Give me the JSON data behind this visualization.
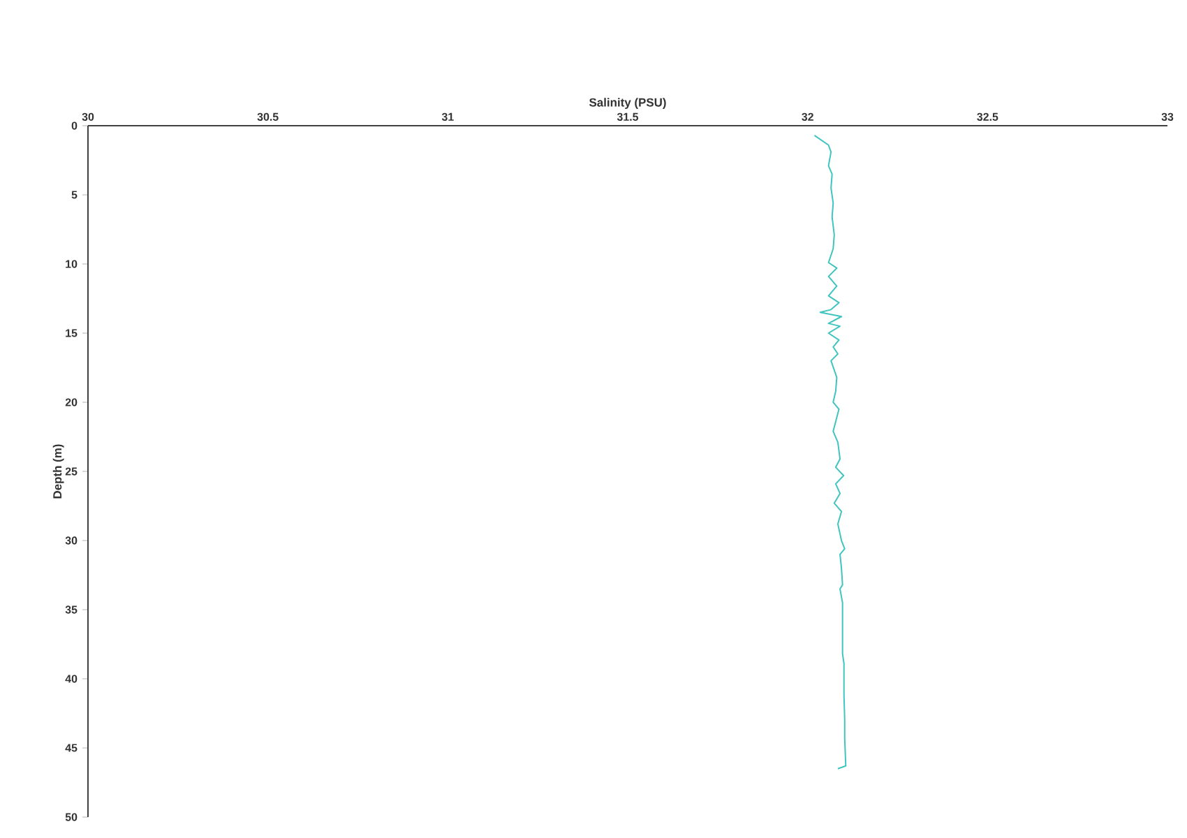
{
  "chart_data": {
    "type": "line",
    "xlabel": "Salinity (PSU)",
    "ylabel": "Depth (m)",
    "xlim": [
      30,
      33
    ],
    "xticks": [
      30,
      30.5,
      31,
      31.5,
      32,
      32.5,
      33
    ],
    "ylim": [
      50,
      0
    ],
    "yticks": [
      0,
      5,
      10,
      15,
      20,
      25,
      30,
      35,
      40,
      45,
      50
    ],
    "marker": "none",
    "line_style": "solid",
    "series": [
      {
        "color": "#40c4c0",
        "x": [
          32.019,
          32.058,
          32.065,
          32.058,
          32.068,
          32.065,
          32.071,
          32.068,
          32.074,
          32.071,
          32.058,
          32.081,
          32.058,
          32.081,
          32.058,
          32.087,
          32.065,
          32.035,
          32.094,
          32.058,
          32.09,
          32.058,
          32.087,
          32.071,
          32.084,
          32.065,
          32.081,
          32.078,
          32.071,
          32.087,
          32.071,
          32.084,
          32.09,
          32.078,
          32.1,
          32.078,
          32.09,
          32.074,
          32.094,
          32.084,
          32.094,
          32.103,
          32.09,
          32.094,
          32.097,
          32.09,
          32.097,
          32.097,
          32.101,
          32.101,
          32.103,
          32.103,
          32.106,
          32.084
        ],
        "values": [
          0.7,
          1.4,
          1.9,
          2.9,
          3.5,
          4.5,
          5.6,
          6.6,
          7.9,
          8.9,
          9.9,
          10.3,
          10.9,
          11.6,
          12.3,
          12.8,
          13.3,
          13.5,
          13.8,
          14.3,
          14.5,
          15,
          15.5,
          16,
          16.5,
          17,
          18.2,
          19.2,
          20,
          20.5,
          22.1,
          22.9,
          24.1,
          24.7,
          25.3,
          25.9,
          26.6,
          27.3,
          27.9,
          28.8,
          30,
          30.6,
          31,
          32,
          33.2,
          33.5,
          34.5,
          38.2,
          38.9,
          41.2,
          42.9,
          44.3,
          46.3,
          46.5
        ]
      }
    ]
  }
}
